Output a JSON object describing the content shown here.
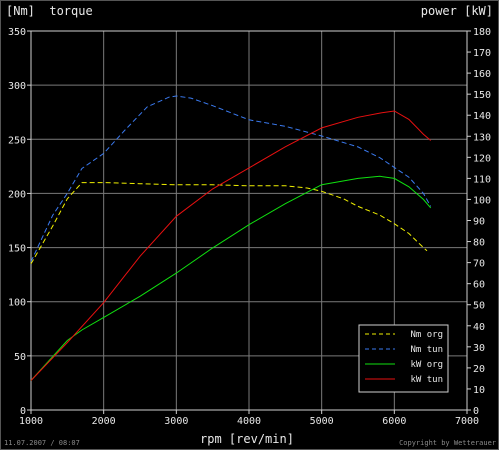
{
  "chart_data": {
    "type": "line",
    "left_axis_label": "[Nm]  torque",
    "right_axis_label": "power [kW]",
    "xlabel": "rpm [rev/min]",
    "xlim": [
      1000,
      7000
    ],
    "ylim_left": [
      0,
      350
    ],
    "ylim_right": [
      0,
      180
    ],
    "x_ticks": [
      "1000",
      "2000",
      "3000",
      "4000",
      "5000",
      "6000",
      "7000"
    ],
    "y_ticks_left": [
      "0",
      "50",
      "100",
      "150",
      "200",
      "250",
      "300",
      "350"
    ],
    "y_ticks_right": [
      "0",
      "10",
      "20",
      "30",
      "40",
      "50",
      "60",
      "70",
      "80",
      "90",
      "100",
      "110",
      "120",
      "130",
      "140",
      "150",
      "160",
      "170",
      "180"
    ],
    "grid": true,
    "legend_position": "bottom-right",
    "series": [
      {
        "name": "Nm org",
        "axis": "left",
        "dashed": true,
        "color": "#f0f000",
        "x": [
          1000,
          1300,
          1500,
          1700,
          2000,
          2500,
          3000,
          3500,
          4000,
          4500,
          4800,
          5000,
          5300,
          5500,
          5800,
          6000,
          6200,
          6400,
          6450
        ],
        "y": [
          135,
          170,
          195,
          210,
          210,
          209,
          208,
          208,
          207,
          207,
          205,
          202,
          195,
          188,
          180,
          172,
          163,
          150,
          147
        ]
      },
      {
        "name": "Nm tun",
        "axis": "left",
        "dashed": true,
        "color": "#3a7af0",
        "x": [
          1000,
          1300,
          1500,
          1700,
          2000,
          2300,
          2600,
          2900,
          3000,
          3200,
          3500,
          4000,
          4500,
          5000,
          5500,
          5800,
          6000,
          6200,
          6400,
          6500
        ],
        "y": [
          137,
          180,
          200,
          223,
          237,
          259,
          280,
          289,
          290,
          288,
          281,
          268,
          262,
          253,
          243,
          233,
          224,
          215,
          200,
          188
        ]
      },
      {
        "name": "kW org",
        "axis": "right",
        "dashed": false,
        "color": "#10e010",
        "x": [
          1000,
          1500,
          1700,
          2000,
          2500,
          3000,
          3500,
          4000,
          4500,
          5000,
          5500,
          5800,
          6000,
          6200,
          6400,
          6500
        ],
        "y": [
          14,
          33,
          38,
          44,
          54,
          65,
          77,
          88,
          98,
          107,
          110,
          111,
          110,
          106,
          100,
          96
        ]
      },
      {
        "name": "kW tun",
        "axis": "right",
        "dashed": false,
        "color": "#e81010",
        "x": [
          1000,
          1500,
          2000,
          2500,
          3000,
          3500,
          4000,
          4500,
          5000,
          5500,
          5800,
          6000,
          6200,
          6400,
          6500
        ],
        "y": [
          14,
          32,
          51,
          73,
          92,
          105,
          115,
          125,
          134,
          139,
          141,
          142,
          138,
          131,
          128
        ]
      }
    ]
  },
  "footer": {
    "timestamp": "11.07.2007 / 08:07",
    "copyright": "Copyright by Wetterauer"
  }
}
